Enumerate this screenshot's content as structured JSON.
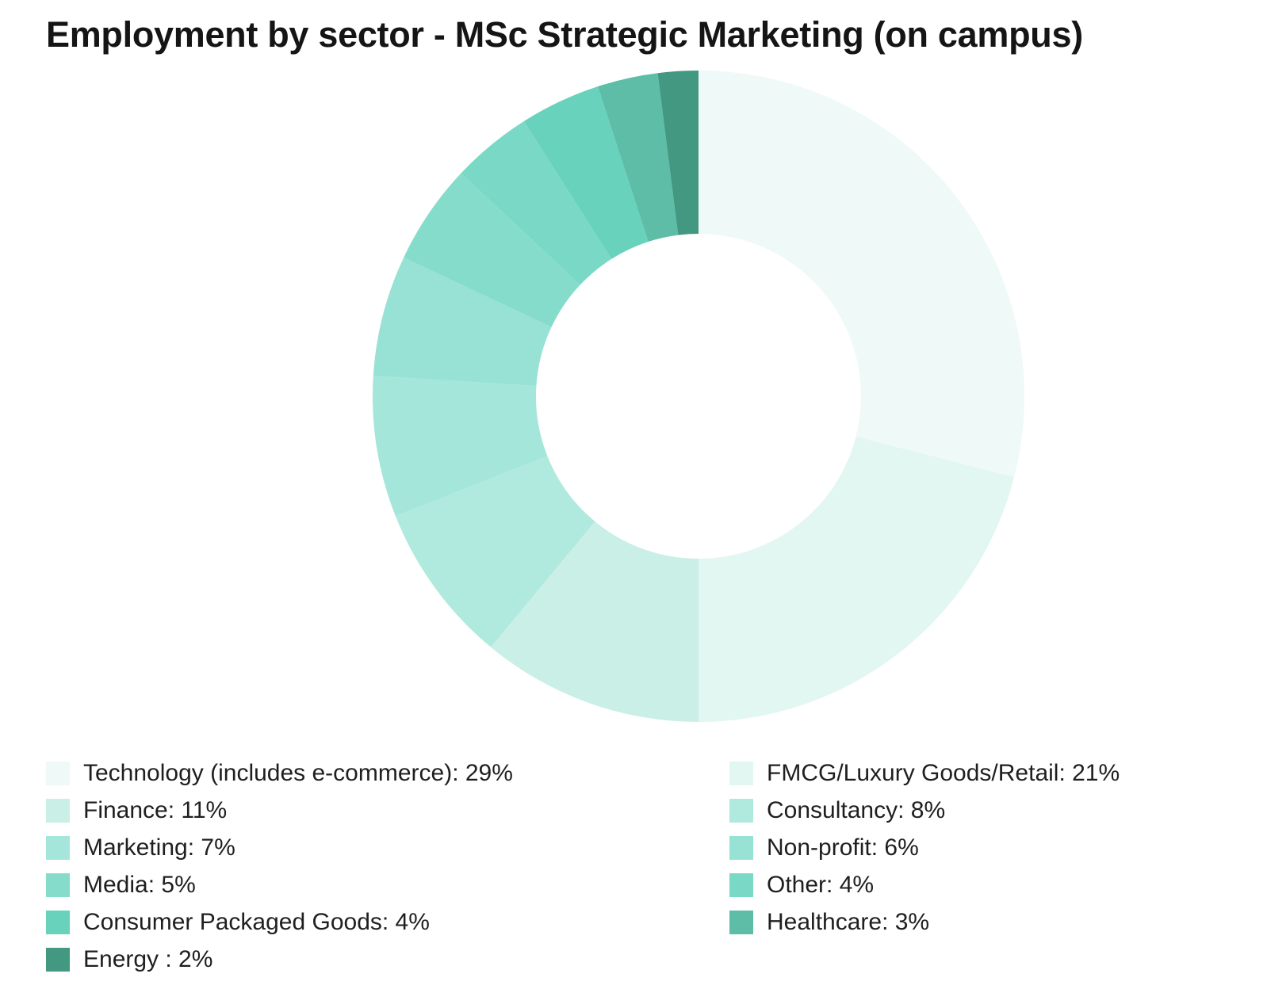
{
  "chart_data": {
    "type": "pie",
    "variant": "donut",
    "title": "Employment by sector - MSc Strategic Marketing (on campus)",
    "unit": "%",
    "legend_position": "bottom",
    "slices": [
      {
        "label": "Technology (includes e-commerce): 29%",
        "name": "Technology (includes e-commerce)",
        "value": 29,
        "color": "#eff9f7"
      },
      {
        "label": "FMCG/Luxury Goods/Retail: 21%",
        "name": "FMCG/Luxury Goods/Retail",
        "value": 21,
        "color": "#e2f6f2"
      },
      {
        "label": "Finance: 11%",
        "name": "Finance",
        "value": 11,
        "color": "#c9efe6"
      },
      {
        "label": "Consultancy: 8%",
        "name": "Consultancy",
        "value": 8,
        "color": "#b0e9de"
      },
      {
        "label": "Marketing: 7%",
        "name": "Marketing",
        "value": 7,
        "color": "#a4e7da"
      },
      {
        "label": "Non-profit: 6%",
        "name": "Non-profit",
        "value": 6,
        "color": "#97e2d4"
      },
      {
        "label": "Media: 5%",
        "name": "Media",
        "value": 5,
        "color": "#86dccb"
      },
      {
        "label": "Other: 4%",
        "name": "Other",
        "value": 4,
        "color": "#7ad9c6"
      },
      {
        "label": "Consumer Packaged Goods: 4%",
        "name": "Consumer Packaged Goods",
        "value": 4,
        "color": "#68d2bc"
      },
      {
        "label": "Healthcare: 3%",
        "name": "Healthcare",
        "value": 3,
        "color": "#5ebda6"
      },
      {
        "label": "Energy : 2%",
        "name": "Energy",
        "value": 2,
        "color": "#439881"
      }
    ]
  }
}
